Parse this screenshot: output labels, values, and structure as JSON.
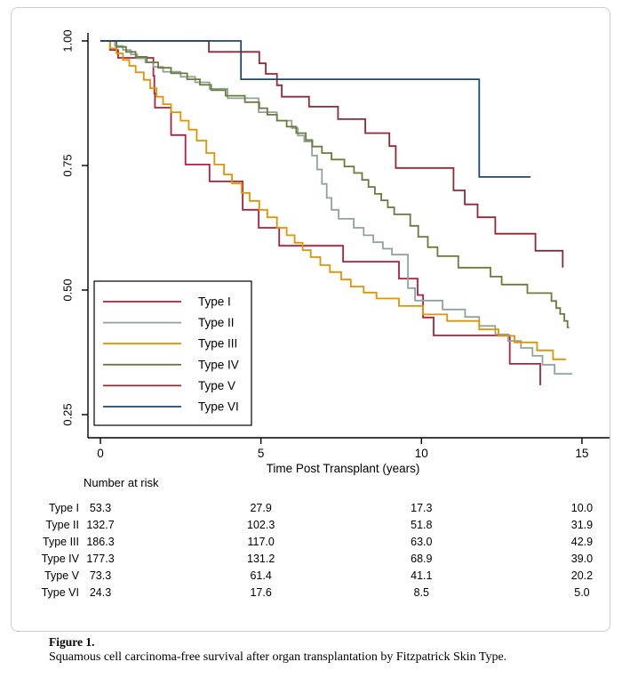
{
  "figure": {
    "panel_border_color": "#cccccc",
    "background": "#ffffff",
    "axis_color": "#000000"
  },
  "chart_data": {
    "type": "line",
    "subtype": "kaplan-meier-step-survival",
    "title": "",
    "xlabel": "Time Post Transplant (years)",
    "ylabel": "",
    "xlim": [
      0,
      15
    ],
    "ylim": [
      0.22,
      1.02
    ],
    "grid": false,
    "x_ticks": [
      0,
      5,
      10,
      15
    ],
    "x_tick_labels": [
      "0",
      "5",
      "10",
      "15"
    ],
    "y_ticks": [
      1.0,
      0.75,
      0.5,
      0.25
    ],
    "y_tick_labels": [
      "1.00",
      "0.75",
      "0.50",
      "0.25"
    ],
    "legend_position": "lower-left-inside",
    "series": [
      {
        "name": "Type I",
        "color": "#b01f3f",
        "end_x": 13.7,
        "points": [
          [
            0,
            1.0
          ],
          [
            0.3,
            0.982
          ],
          [
            0.55,
            0.966
          ],
          [
            1.65,
            0.93
          ],
          [
            1.68,
            0.895
          ],
          [
            1.7,
            0.866
          ],
          [
            2.2,
            0.811
          ],
          [
            2.65,
            0.752
          ],
          [
            3.4,
            0.718
          ],
          [
            4.43,
            0.661
          ],
          [
            4.93,
            0.625
          ],
          [
            5.57,
            0.589
          ],
          [
            7.56,
            0.557
          ],
          [
            9.3,
            0.523
          ],
          [
            9.88,
            0.49
          ],
          [
            10.05,
            0.445
          ],
          [
            10.38,
            0.409
          ],
          [
            12.75,
            0.352
          ],
          [
            13.7,
            0.309
          ]
        ]
      },
      {
        "name": "Type II",
        "color": "#8fa39c",
        "end_x": 14.7,
        "points": [
          [
            0,
            1.0
          ],
          [
            0.45,
            0.99
          ],
          [
            0.7,
            0.982
          ],
          [
            0.95,
            0.973
          ],
          [
            1.15,
            0.965
          ],
          [
            1.4,
            0.957
          ],
          [
            1.65,
            0.948
          ],
          [
            1.95,
            0.938
          ],
          [
            2.5,
            0.928
          ],
          [
            2.95,
            0.917
          ],
          [
            3.4,
            0.904
          ],
          [
            3.96,
            0.885
          ],
          [
            4.93,
            0.857
          ],
          [
            5.5,
            0.84
          ],
          [
            5.96,
            0.825
          ],
          [
            6.15,
            0.81
          ],
          [
            6.35,
            0.798
          ],
          [
            6.59,
            0.77
          ],
          [
            6.75,
            0.742
          ],
          [
            6.9,
            0.713
          ],
          [
            7.05,
            0.685
          ],
          [
            7.2,
            0.661
          ],
          [
            7.42,
            0.643
          ],
          [
            7.89,
            0.625
          ],
          [
            8.2,
            0.61
          ],
          [
            8.5,
            0.596
          ],
          [
            8.8,
            0.583
          ],
          [
            9.08,
            0.571
          ],
          [
            9.58,
            0.504
          ],
          [
            9.8,
            0.479
          ],
          [
            10.66,
            0.461
          ],
          [
            11.36,
            0.446
          ],
          [
            11.8,
            0.428
          ],
          [
            12.3,
            0.411
          ],
          [
            12.7,
            0.398
          ],
          [
            13.1,
            0.384
          ],
          [
            13.46,
            0.368
          ],
          [
            13.77,
            0.35
          ],
          [
            14.15,
            0.332
          ]
        ]
      },
      {
        "name": "Type III",
        "color": "#e09303",
        "end_x": 14.5,
        "points": [
          [
            0,
            1.0
          ],
          [
            0.3,
            0.985
          ],
          [
            0.5,
            0.975
          ],
          [
            0.7,
            0.962
          ],
          [
            0.9,
            0.95
          ],
          [
            1.1,
            0.937
          ],
          [
            1.35,
            0.922
          ],
          [
            1.55,
            0.905
          ],
          [
            1.75,
            0.888
          ],
          [
            1.95,
            0.873
          ],
          [
            2.2,
            0.857
          ],
          [
            2.5,
            0.84
          ],
          [
            2.75,
            0.822
          ],
          [
            3.0,
            0.8
          ],
          [
            3.3,
            0.775
          ],
          [
            3.55,
            0.752
          ],
          [
            3.85,
            0.732
          ],
          [
            4.1,
            0.714
          ],
          [
            4.4,
            0.695
          ],
          [
            4.65,
            0.679
          ],
          [
            4.95,
            0.661
          ],
          [
            5.2,
            0.646
          ],
          [
            5.5,
            0.625
          ],
          [
            5.8,
            0.61
          ],
          [
            6.05,
            0.595
          ],
          [
            6.3,
            0.58
          ],
          [
            6.55,
            0.566
          ],
          [
            6.85,
            0.55
          ],
          [
            7.15,
            0.536
          ],
          [
            7.5,
            0.521
          ],
          [
            7.8,
            0.507
          ],
          [
            8.2,
            0.495
          ],
          [
            8.6,
            0.483
          ],
          [
            9.3,
            0.468
          ],
          [
            10.05,
            0.451
          ],
          [
            10.8,
            0.438
          ],
          [
            11.8,
            0.421
          ],
          [
            12.4,
            0.408
          ],
          [
            12.9,
            0.395
          ],
          [
            13.6,
            0.379
          ],
          [
            14.1,
            0.361
          ]
        ]
      },
      {
        "name": "Type IV",
        "color": "#697c3b",
        "end_x": 14.6,
        "points": [
          [
            0,
            1.0
          ],
          [
            0.5,
            0.988
          ],
          [
            0.8,
            0.978
          ],
          [
            1.1,
            0.968
          ],
          [
            1.45,
            0.957
          ],
          [
            1.8,
            0.946
          ],
          [
            2.2,
            0.935
          ],
          [
            2.7,
            0.923
          ],
          [
            3.1,
            0.912
          ],
          [
            3.45,
            0.901
          ],
          [
            3.9,
            0.89
          ],
          [
            4.5,
            0.877
          ],
          [
            4.95,
            0.865
          ],
          [
            5.2,
            0.852
          ],
          [
            5.5,
            0.84
          ],
          [
            5.8,
            0.828
          ],
          [
            6.1,
            0.815
          ],
          [
            6.4,
            0.801
          ],
          [
            6.6,
            0.788
          ],
          [
            6.9,
            0.775
          ],
          [
            7.2,
            0.762
          ],
          [
            7.6,
            0.748
          ],
          [
            7.9,
            0.735
          ],
          [
            8.15,
            0.721
          ],
          [
            8.35,
            0.707
          ],
          [
            8.55,
            0.693
          ],
          [
            8.75,
            0.68
          ],
          [
            8.95,
            0.666
          ],
          [
            9.15,
            0.652
          ],
          [
            9.65,
            0.629
          ],
          [
            9.9,
            0.607
          ],
          [
            10.2,
            0.586
          ],
          [
            10.5,
            0.568
          ],
          [
            11.15,
            0.545
          ],
          [
            12.15,
            0.527
          ],
          [
            12.5,
            0.511
          ],
          [
            13.3,
            0.494
          ],
          [
            14.05,
            0.478
          ],
          [
            14.2,
            0.464
          ],
          [
            14.32,
            0.452
          ],
          [
            14.45,
            0.438
          ],
          [
            14.55,
            0.425
          ]
        ]
      },
      {
        "name": "Type V",
        "color": "#8e2937",
        "end_x": 14.4,
        "points": [
          [
            0,
            1.0
          ],
          [
            3.38,
            0.978
          ],
          [
            4.95,
            0.955
          ],
          [
            5.15,
            0.934
          ],
          [
            5.5,
            0.911
          ],
          [
            5.65,
            0.888
          ],
          [
            6.5,
            0.868
          ],
          [
            7.4,
            0.843
          ],
          [
            8.25,
            0.815
          ],
          [
            9.0,
            0.789
          ],
          [
            9.2,
            0.745
          ],
          [
            11.0,
            0.7
          ],
          [
            11.35,
            0.672
          ],
          [
            11.75,
            0.646
          ],
          [
            12.3,
            0.613
          ],
          [
            13.55,
            0.579
          ],
          [
            14.4,
            0.545
          ]
        ]
      },
      {
        "name": "Type VI",
        "color": "#1e4a68",
        "end_x": 13.4,
        "points": [
          [
            0,
            1.0
          ],
          [
            4.38,
            0.923
          ],
          [
            11.8,
            0.727
          ]
        ]
      }
    ],
    "risk_table": {
      "header": "Number at risk",
      "time_points": [
        0,
        5,
        10,
        15
      ],
      "rows": [
        {
          "label": "Type I",
          "values": [
            "53.3",
            "27.9",
            "17.3",
            "10.0"
          ]
        },
        {
          "label": "Type II",
          "values": [
            "132.7",
            "102.3",
            "51.8",
            "31.9"
          ]
        },
        {
          "label": "Type III",
          "values": [
            "186.3",
            "117.0",
            "63.0",
            "42.9"
          ]
        },
        {
          "label": "Type IV",
          "values": [
            "177.3",
            "131.2",
            "68.9",
            "39.0"
          ]
        },
        {
          "label": "Type V",
          "values": [
            "73.3",
            "61.4",
            "41.1",
            "20.2"
          ]
        },
        {
          "label": "Type VI",
          "values": [
            "24.3",
            "17.6",
            "8.5",
            "5.0"
          ]
        }
      ]
    }
  },
  "caption": {
    "label": "Figure 1.",
    "text": "Squamous cell carcinoma-free survival after organ transplantation by Fitzpatrick Skin Type."
  }
}
